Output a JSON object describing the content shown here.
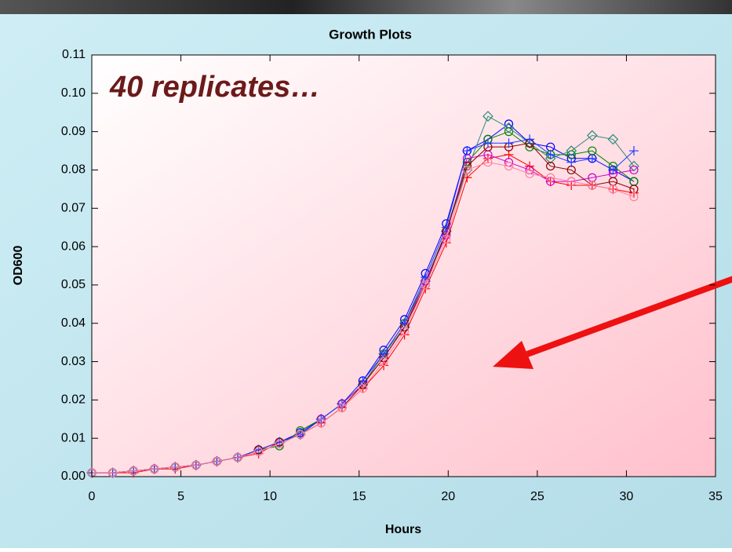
{
  "chart_data": {
    "type": "line",
    "title": "Growth Plots",
    "annotation": "40 replicates…",
    "xlabel": "Hours",
    "ylabel": "OD600",
    "x": [
      0,
      1.17,
      2.34,
      3.51,
      4.68,
      5.85,
      7.02,
      8.19,
      9.36,
      10.53,
      11.7,
      12.87,
      14.04,
      15.21,
      16.38,
      17.55,
      18.72,
      19.89,
      21.06,
      22.23,
      23.4,
      24.57,
      25.74,
      26.91,
      28.08,
      29.25,
      30.42
    ],
    "series": [
      {
        "color": "#0000ff",
        "marker": "circle",
        "values": [
          0.001,
          0.001,
          0.0015,
          0.002,
          0.0025,
          0.003,
          0.004,
          0.005,
          0.007,
          0.009,
          0.0115,
          0.015,
          0.019,
          0.025,
          0.033,
          0.041,
          0.053,
          0.066,
          0.085,
          0.088,
          0.092,
          0.087,
          0.086,
          0.083,
          0.083,
          0.08,
          0.077
        ]
      },
      {
        "color": "#ff0000",
        "marker": "plus",
        "values": [
          0.001,
          0.001,
          0.001,
          0.002,
          0.002,
          0.003,
          0.004,
          0.005,
          0.006,
          0.009,
          0.011,
          0.014,
          0.018,
          0.023,
          0.029,
          0.037,
          0.049,
          0.061,
          0.078,
          0.083,
          0.084,
          0.081,
          0.077,
          0.076,
          0.076,
          0.075,
          0.074
        ]
      },
      {
        "color": "#008000",
        "marker": "circle",
        "values": [
          0.001,
          0.001,
          0.0015,
          0.002,
          0.0025,
          0.003,
          0.004,
          0.005,
          0.007,
          0.008,
          0.012,
          0.015,
          0.019,
          0.024,
          0.032,
          0.04,
          0.051,
          0.064,
          0.082,
          0.088,
          0.09,
          0.086,
          0.084,
          0.084,
          0.085,
          0.081,
          0.077
        ]
      },
      {
        "color": "#2e8b7a",
        "marker": "diamond",
        "values": [
          0.001,
          0.001,
          0.0015,
          0.002,
          0.0025,
          0.003,
          0.004,
          0.005,
          0.007,
          0.009,
          0.011,
          0.015,
          0.019,
          0.024,
          0.032,
          0.039,
          0.051,
          0.064,
          0.08,
          0.094,
          0.091,
          0.087,
          0.083,
          0.085,
          0.089,
          0.088,
          0.081
        ]
      },
      {
        "color": "#cc00cc",
        "marker": "circle",
        "values": [
          0.001,
          0.001,
          0.0015,
          0.002,
          0.0025,
          0.003,
          0.004,
          0.005,
          0.007,
          0.009,
          0.011,
          0.015,
          0.019,
          0.024,
          0.031,
          0.039,
          0.051,
          0.063,
          0.083,
          0.084,
          0.082,
          0.08,
          0.077,
          0.077,
          0.078,
          0.079,
          0.08
        ]
      },
      {
        "color": "#8b0000",
        "marker": "circle",
        "values": [
          0.001,
          0.001,
          0.0015,
          0.002,
          0.0025,
          0.003,
          0.004,
          0.005,
          0.007,
          0.009,
          0.011,
          0.014,
          0.018,
          0.024,
          0.031,
          0.039,
          0.05,
          0.064,
          0.081,
          0.086,
          0.086,
          0.087,
          0.081,
          0.08,
          0.076,
          0.077,
          0.075
        ]
      },
      {
        "color": "#1e3cff",
        "marker": "plus",
        "values": [
          0.001,
          0.001,
          0.0015,
          0.002,
          0.0025,
          0.003,
          0.004,
          0.005,
          0.007,
          0.009,
          0.011,
          0.015,
          0.019,
          0.025,
          0.032,
          0.04,
          0.052,
          0.065,
          0.085,
          0.087,
          0.087,
          0.088,
          0.084,
          0.082,
          0.083,
          0.08,
          0.085
        ]
      },
      {
        "color": "#ff7fa0",
        "marker": "circle",
        "values": [
          0.001,
          0.001,
          0.0015,
          0.002,
          0.0025,
          0.003,
          0.004,
          0.005,
          0.0065,
          0.0085,
          0.011,
          0.014,
          0.018,
          0.023,
          0.03,
          0.038,
          0.05,
          0.062,
          0.08,
          0.082,
          0.081,
          0.079,
          0.078,
          0.077,
          0.076,
          0.075,
          0.073
        ]
      }
    ],
    "xlim": [
      0,
      35
    ],
    "xticks": [
      0,
      5,
      10,
      15,
      20,
      25,
      30,
      35
    ],
    "ylim": [
      0,
      0.11
    ],
    "yticks": [
      {
        "value": 0,
        "label": "0.00"
      },
      0.01,
      0.02,
      0.03,
      0.04,
      0.05,
      0.06,
      0.07,
      0.08,
      0.09,
      {
        "value": 0.1,
        "label": "0.10"
      },
      0.11
    ]
  }
}
